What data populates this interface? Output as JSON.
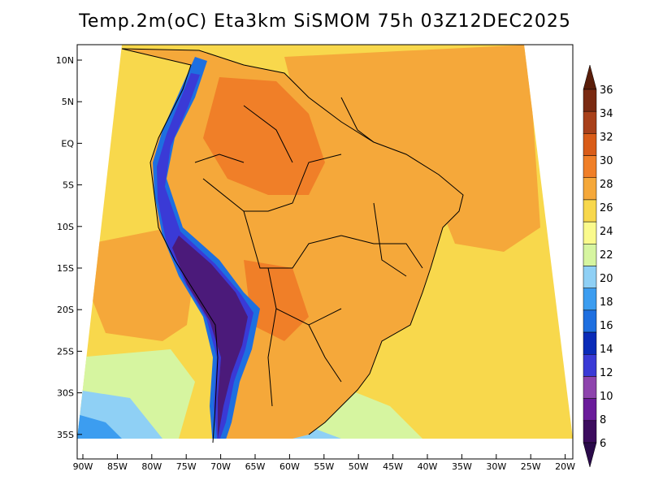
{
  "title": "Temp.2m(oC) Eta3km SiSMOM 75h 03Z12DEC2025",
  "lat_labels": [
    "10N",
    "5N",
    "EQ",
    "5S",
    "10S",
    "15S",
    "20S",
    "25S",
    "30S",
    "35S"
  ],
  "lon_labels": [
    "90W",
    "85W",
    "80W",
    "75W",
    "70W",
    "65W",
    "60W",
    "55W",
    "50W",
    "45W",
    "40W",
    "35W",
    "30W",
    "25W",
    "20W"
  ],
  "colorbar": {
    "labels": [
      "6",
      "8",
      "10",
      "12",
      "14",
      "16",
      "18",
      "20",
      "22",
      "24",
      "26",
      "28",
      "30",
      "32",
      "34",
      "36"
    ],
    "colors": [
      "#3c0c5e",
      "#6a1b9a",
      "#8e44ad",
      "#3a3ad6",
      "#0a2bb8",
      "#1e6fe0",
      "#3c9df0",
      "#8fd0f5",
      "#d6f5a0",
      "#fafa8c",
      "#f8d84c",
      "#f5a83a",
      "#f07f28",
      "#d95c18",
      "#a8401a",
      "#7a2a12"
    ],
    "low_arrow_color": "#2a0a4a",
    "high_arrow_color": "#5a1e0a"
  },
  "map_colors": {
    "ocean_warm": "#f5a83a",
    "ocean_mild": "#f8d84c",
    "ocean_cool": "#fafa8c",
    "ocean_cold": "#d6f5a0",
    "ocean_colder": "#8fd0f5",
    "ocean_coldest": "#3c9df0",
    "land_hot": "#f07f28",
    "land_warm": "#f5a83a",
    "andes_cold": "#3a3ad6",
    "andes_coldest": "#4b1a7a",
    "andes_mid": "#1e6fe0"
  }
}
